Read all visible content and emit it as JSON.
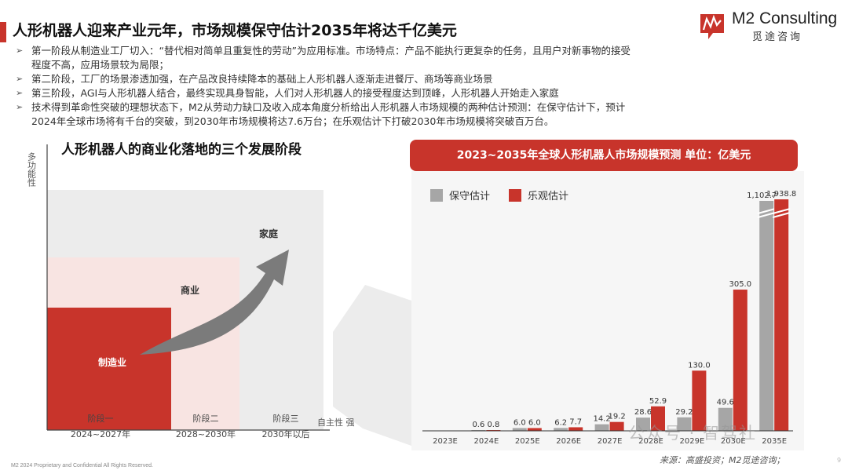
{
  "header": {
    "title": "人形机器人迎来产业元年，市场规模保守估计2035年将达千亿美元",
    "logo_name": "M2 Consulting",
    "logo_sub": "觅途咨询"
  },
  "bullets": [
    "第一阶段从制造业工厂切入：“替代相对简单且重复性的劳动”为应用标准。市场特点：产品不能执行更复杂的任务，且用户对新事物的接受\n程度不高，应用场景较为局限；",
    "第二阶段，工厂的场景渗透加强，在产品改良持续降本的基础上人形机器人逐渐走进餐厅、商场等商业场景",
    "第三阶段，AGI与人形机器人结合，最终实现具身智能，人们对人形机器人的接受程度达到顶峰，人形机器人开始走入家庭",
    "技术得到革命性突破的理想状态下，M2从劳动力缺口及收入成本角度分析给出人形机器人市场规模的两种估计预测：在保守估计下，预计\n2024年全球市场将有千台的突破，到2030年市场规模将达7.6万台；在乐观估计下打破2030年市场规模将突破百万台。"
  ],
  "stage_diagram": {
    "title": "人形机器人的商业化落地的三个发展阶段",
    "y_axis_label": "多功能性",
    "x_axis_label": "自主性 强",
    "boxes": [
      "家庭",
      "商业",
      "制造业"
    ],
    "stages": [
      {
        "name": "阶段一",
        "period": "2024~2027年"
      },
      {
        "name": "阶段二",
        "period": "2028~2030年"
      },
      {
        "name": "阶段三",
        "period": "2030年以后"
      }
    ]
  },
  "chart_data": {
    "type": "bar",
    "title": "2023~2035年全球人形机器人市场规模预测 单位：亿美元",
    "categories": [
      "2023E",
      "2024E",
      "2025E",
      "2026E",
      "2027E",
      "2028E",
      "2029E",
      "2030E",
      "2035E"
    ],
    "series": [
      {
        "name": "保守估计",
        "color": "#a6a6a6",
        "values": [
          0,
          0.6,
          6.0,
          6.2,
          14.2,
          28.6,
          29.2,
          49.6,
          1102.7
        ],
        "labels": [
          "",
          "0.6",
          "6.0",
          "6.2",
          "14.2",
          "28.6",
          "29.2",
          "49.6",
          "1,102.7"
        ]
      },
      {
        "name": "乐观估计",
        "color": "#c8342b",
        "values": [
          0,
          0.8,
          6.0,
          7.7,
          19.2,
          52.9,
          130.0,
          305.0,
          1938.8
        ],
        "labels": [
          "",
          "0.8",
          "6.0",
          "7.7",
          "19.2",
          "52.9",
          "130.0",
          "305.0",
          "1,938.8"
        ]
      }
    ],
    "axis_break": true,
    "legend": "top-left"
  },
  "source": "来源：高盛投资；M2觅途咨询；",
  "watermark": "公众号 · 智驾社",
  "footer": "M2 2024 Proprietary and Confidential All Rights Reserved.",
  "page_number": "9",
  "colors": {
    "accent": "#c8342b",
    "grey": "#a6a6a6"
  }
}
